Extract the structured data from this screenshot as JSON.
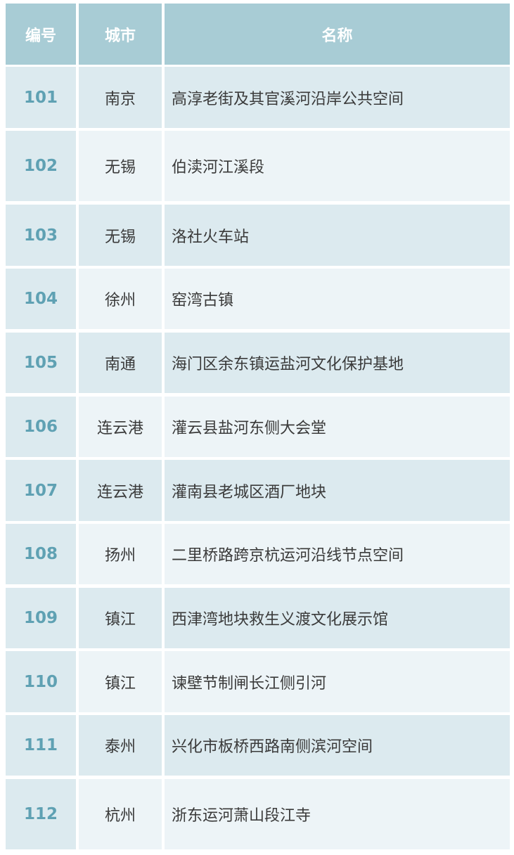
{
  "table": {
    "headers": [
      "编号",
      "城市",
      "名称"
    ],
    "rows": [
      {
        "id": "101",
        "city": "南京",
        "name": "高淳老街及其官溪河沿岸公共空间"
      },
      {
        "id": "102",
        "city": "无锡",
        "name": "伯渎河江溪段"
      },
      {
        "id": "103",
        "city": "无锡",
        "name": "洛社火车站"
      },
      {
        "id": "104",
        "city": "徐州",
        "name": "窑湾古镇"
      },
      {
        "id": "105",
        "city": "南通",
        "name": "海门区余东镇运盐河文化保护基地"
      },
      {
        "id": "106",
        "city": "连云港",
        "name": "灌云县盐河东侧大会堂"
      },
      {
        "id": "107",
        "city": "连云港",
        "name": "灌南县老城区酒厂地块"
      },
      {
        "id": "108",
        "city": "扬州",
        "name": "二里桥路跨京杭运河沿线节点空间"
      },
      {
        "id": "109",
        "city": "镇江",
        "name": "西津湾地块救生义渡文化展示馆"
      },
      {
        "id": "110",
        "city": "镇江",
        "name": "谏壁节制闸长江侧引河"
      },
      {
        "id": "111",
        "city": "泰州",
        "name": "兴化市板桥西路南侧滨河空间"
      },
      {
        "id": "112",
        "city": "杭州",
        "name": "浙东运河萧山段江寺"
      }
    ]
  },
  "colors": {
    "header": "#a8ccd5",
    "row_dark": "#dceaef",
    "row_light": "#edf4f7",
    "id_text": "#5fa1b3",
    "body_text": "#3a3a3a"
  }
}
